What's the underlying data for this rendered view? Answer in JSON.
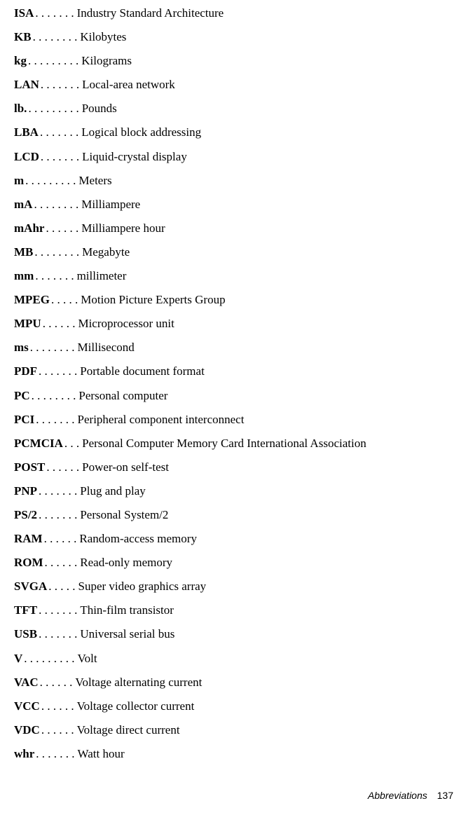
{
  "entries": [
    {
      "term": "ISA",
      "dots": " . . . . . . .",
      "def": "Industry Standard Architecture"
    },
    {
      "term": "KB",
      "dots": ". . . . . . . .",
      "def": "Kilobytes"
    },
    {
      "term": "kg",
      "dots": ". . . . . . . . .",
      "def": "Kilograms"
    },
    {
      "term": "LAN",
      "dots": ". . . . . . .",
      "def": "Local-area network"
    },
    {
      "term": "lb.",
      "dots": ". . . . . . . . .",
      "def": "Pounds"
    },
    {
      "term": "LBA",
      "dots": ". . . . . . .",
      "def": "Logical block addressing"
    },
    {
      "term": "LCD",
      "dots": ". . . . . . .",
      "def": "Liquid-crystal display"
    },
    {
      "term": "m",
      "dots": " . . . . . . . . .",
      "def": "Meters"
    },
    {
      "term": "mA",
      "dots": ". . . . . . . .",
      "def": "Milliampere"
    },
    {
      "term": "mAhr",
      "dots": ". . . . . .",
      "def": "Milliampere hour"
    },
    {
      "term": "MB",
      "dots": ". . . . . . . .",
      "def": "Megabyte"
    },
    {
      "term": "mm",
      "dots": " . . . . . . .",
      "def": "millimeter"
    },
    {
      "term": "MPEG",
      "dots": ". . . . .",
      "def": "Motion Picture Experts Group"
    },
    {
      "term": "MPU",
      "dots": " . . . . . .",
      "def": "Microprocessor unit"
    },
    {
      "term": "ms",
      "dots": " . . . . . . . .",
      "def": "Millisecond"
    },
    {
      "term": "PDF",
      "dots": ". . . . . . .",
      "def": "Portable document format"
    },
    {
      "term": "PC",
      "dots": " . . . . . . . .",
      "def": "Personal computer"
    },
    {
      "term": "PCI",
      "dots": " . . . . . . .",
      "def": "Peripheral component interconnect"
    },
    {
      "term": "PCMCIA",
      "dots": ". . .",
      "def": "Personal Computer Memory Card International Association"
    },
    {
      "term": "POST",
      "dots": ". . . . . .",
      "def": "Power-on self-test"
    },
    {
      "term": "PNP",
      "dots": ". . . . . . .",
      "def": "Plug and play"
    },
    {
      "term": "PS/2",
      "dots": ". . . . . . .",
      "def": "Personal System/2"
    },
    {
      "term": "RAM",
      "dots": " . . . . . .",
      "def": "Random-access memory"
    },
    {
      "term": "ROM",
      "dots": " . . . . . .",
      "def": "Read-only memory"
    },
    {
      "term": "SVGA",
      "dots": " . . . . .",
      "def": "Super video graphics array"
    },
    {
      "term": "TFT",
      "dots": ". . . . . . .",
      "def": "Thin-film transistor"
    },
    {
      "term": "USB",
      "dots": ". . . . . . .",
      "def": "Universal serial bus"
    },
    {
      "term": "V",
      "dots": " . . . . . . . . .",
      "def": "Volt"
    },
    {
      "term": "VAC",
      "dots": " . . . . . .",
      "def": "Voltage alternating current"
    },
    {
      "term": "VCC",
      "dots": " . . . . . .",
      "def": "Voltage collector current"
    },
    {
      "term": "VDC",
      "dots": " . . . . . .",
      "def": "Voltage direct current"
    },
    {
      "term": "whr",
      "dots": " . . . . . . .",
      "def": "Watt hour"
    }
  ],
  "footer": {
    "section": "Abbreviations",
    "page": "137"
  }
}
